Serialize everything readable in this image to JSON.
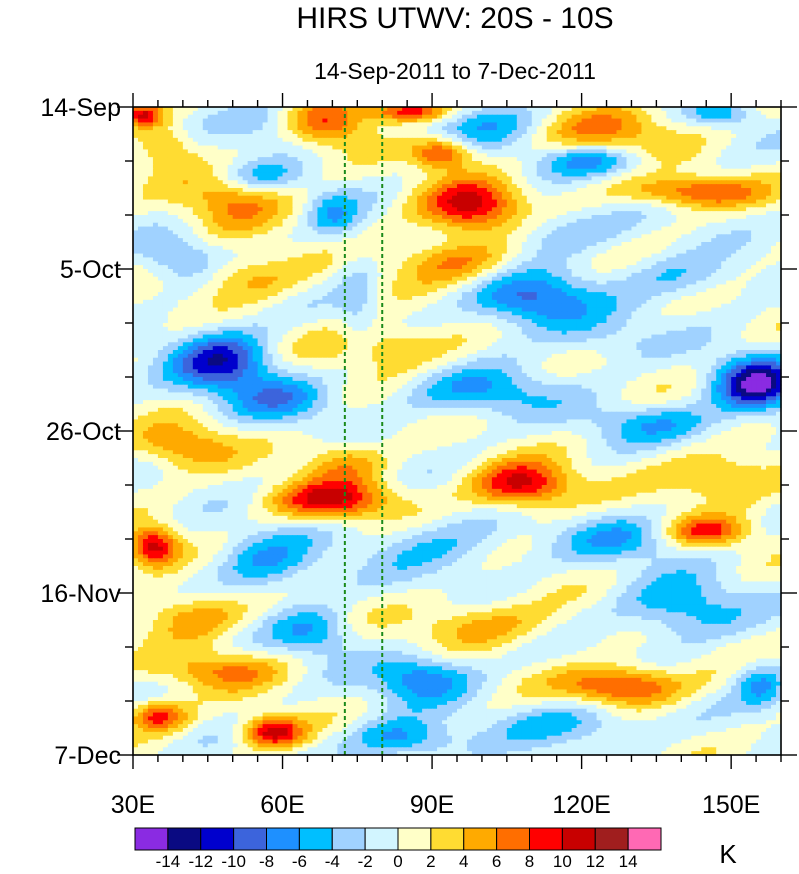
{
  "chart_data": {
    "type": "heatmap",
    "title": "HIRS UTWV: 20S - 10S",
    "subtitle": "14-Sep-2011 to 7-Dec-2011",
    "x_range": [
      30,
      160
    ],
    "x_ticks": [
      {
        "value": 30,
        "label": "30E"
      },
      {
        "value": 60,
        "label": "60E"
      },
      {
        "value": 90,
        "label": "90E"
      },
      {
        "value": 120,
        "label": "120E"
      },
      {
        "value": 150,
        "label": "150E"
      }
    ],
    "x_minor_step": 5,
    "y_range_days": [
      0,
      84
    ],
    "y_ticks": [
      {
        "value": 0,
        "label": "14-Sep"
      },
      {
        "value": 21,
        "label": "5-Oct"
      },
      {
        "value": 42,
        "label": "26-Oct"
      },
      {
        "value": 63,
        "label": "16-Nov"
      },
      {
        "value": 84,
        "label": "7-Dec"
      }
    ],
    "y_minor_step": 7,
    "reference_lines_lon": [
      72.5,
      80
    ],
    "units": "K",
    "levels": [
      -14,
      -12,
      -10,
      -8,
      -6,
      -4,
      -2,
      0,
      2,
      4,
      6,
      8,
      10,
      12,
      14
    ],
    "level_labels": [
      "-14",
      "-12",
      "-10",
      "-8",
      "-6",
      "-4",
      "-2",
      "0",
      "2",
      "4",
      "6",
      "8",
      "10",
      "12",
      "14"
    ],
    "colors": [
      "#8a2be2",
      "#0a0a82",
      "#0000cd",
      "#3c64dc",
      "#1e90ff",
      "#00bfff",
      "#a0d2ff",
      "#d2f5ff",
      "#ffffc8",
      "#ffdc32",
      "#ffaa00",
      "#ff6e00",
      "#ff0000",
      "#c80000",
      "#a01e1e",
      "#ff69b4"
    ],
    "anomaly_features": [
      {
        "lon": 60,
        "day": 2,
        "value": -8,
        "spread_lon": 10,
        "spread_day": 3
      },
      {
        "lon": 67,
        "day": 2,
        "value": 11,
        "spread_lon": 10,
        "spread_day": 3
      },
      {
        "lon": 86,
        "day": 0.5,
        "value": 12,
        "spread_lon": 8,
        "spread_day": 1.5
      },
      {
        "lon": 32,
        "day": 1,
        "value": 10,
        "spread_lon": 4,
        "spread_day": 1.5
      },
      {
        "lon": 37,
        "day": 5,
        "value": 5,
        "spread_lon": 6,
        "spread_day": 3
      },
      {
        "lon": 100,
        "day": 2,
        "value": -5,
        "spread_lon": 14,
        "spread_day": 3
      },
      {
        "lon": 125,
        "day": 3,
        "value": 6,
        "spread_lon": 14,
        "spread_day": 3
      },
      {
        "lon": 148,
        "day": 1,
        "value": -5,
        "spread_lon": 6,
        "spread_day": 1.5
      },
      {
        "lon": 92,
        "day": 6,
        "value": 9,
        "spread_lon": 6,
        "spread_day": 2
      },
      {
        "lon": 122,
        "day": 7,
        "value": -6,
        "spread_lon": 10,
        "spread_day": 2
      },
      {
        "lon": 55,
        "day": 9,
        "value": -5,
        "spread_lon": 8,
        "spread_day": 2
      },
      {
        "lon": 50,
        "day": 12,
        "value": 6,
        "spread_lon": 10,
        "spread_day": 4
      },
      {
        "lon": 98,
        "day": 13,
        "value": 11,
        "spread_lon": 10,
        "spread_day": 3.5
      },
      {
        "lon": 142,
        "day": 11,
        "value": 8,
        "spread_lon": 14,
        "spread_day": 2
      },
      {
        "lon": 70,
        "day": 14,
        "value": -5,
        "spread_lon": 5,
        "spread_day": 3
      },
      {
        "lon": 115,
        "day": 16,
        "value": -4,
        "spread_lon": 14,
        "spread_day": 3
      },
      {
        "lon": 40,
        "day": 20,
        "value": -5,
        "spread_lon": 8,
        "spread_day": 3
      },
      {
        "lon": 52,
        "day": 22,
        "value": 5,
        "spread_lon": 12,
        "spread_day": 3
      },
      {
        "lon": 95,
        "day": 20,
        "value": 6,
        "spread_lon": 12,
        "spread_day": 3
      },
      {
        "lon": 110,
        "day": 25,
        "value": -9,
        "spread_lon": 12,
        "spread_day": 3.5
      },
      {
        "lon": 140,
        "day": 22,
        "value": -4,
        "spread_lon": 12,
        "spread_day": 3
      },
      {
        "lon": 48,
        "day": 33,
        "value": -11,
        "spread_lon": 10,
        "spread_day": 4
      },
      {
        "lon": 80,
        "day": 31,
        "value": 5,
        "spread_lon": 14,
        "spread_day": 3
      },
      {
        "lon": 124,
        "day": 30,
        "value": -3,
        "spread_lon": 12,
        "spread_day": 3
      },
      {
        "lon": 155,
        "day": 36,
        "value": -14,
        "spread_lon": 8,
        "spread_day": 3.5
      },
      {
        "lon": 100,
        "day": 37,
        "value": -6,
        "spread_lon": 14,
        "spread_day": 3
      },
      {
        "lon": 60,
        "day": 38,
        "value": -6,
        "spread_lon": 10,
        "spread_day": 3
      },
      {
        "lon": 135,
        "day": 41,
        "value": -5,
        "spread_lon": 14,
        "spread_day": 2.5
      },
      {
        "lon": 40,
        "day": 44,
        "value": 6,
        "spread_lon": 10,
        "spread_day": 3
      },
      {
        "lon": 72,
        "day": 46,
        "value": 5,
        "spread_lon": 8,
        "spread_day": 3
      },
      {
        "lon": 108,
        "day": 49,
        "value": 11,
        "spread_lon": 10,
        "spread_day": 3
      },
      {
        "lon": 148,
        "day": 48,
        "value": 6,
        "spread_lon": 12,
        "spread_day": 3
      },
      {
        "lon": 70,
        "day": 51,
        "value": 10,
        "spread_lon": 12,
        "spread_day": 2.5
      },
      {
        "lon": 34,
        "day": 57,
        "value": 11,
        "spread_lon": 5,
        "spread_day": 2.5
      },
      {
        "lon": 57,
        "day": 59,
        "value": -6,
        "spread_lon": 10,
        "spread_day": 4
      },
      {
        "lon": 92,
        "day": 57,
        "value": -4,
        "spread_lon": 14,
        "spread_day": 4
      },
      {
        "lon": 128,
        "day": 56,
        "value": -5,
        "spread_lon": 12,
        "spread_day": 3
      },
      {
        "lon": 145,
        "day": 55,
        "value": 8,
        "spread_lon": 8,
        "spread_day": 2
      },
      {
        "lon": 42,
        "day": 66,
        "value": 6,
        "spread_lon": 10,
        "spread_day": 3
      },
      {
        "lon": 66,
        "day": 68,
        "value": -6,
        "spread_lon": 8,
        "spread_day": 3
      },
      {
        "lon": 100,
        "day": 67,
        "value": 5,
        "spread_lon": 14,
        "spread_day": 3
      },
      {
        "lon": 140,
        "day": 65,
        "value": -6,
        "spread_lon": 12,
        "spread_day": 4
      },
      {
        "lon": 88,
        "day": 74,
        "value": -8,
        "spread_lon": 10,
        "spread_day": 3
      },
      {
        "lon": 128,
        "day": 75,
        "value": 10,
        "spread_lon": 12,
        "spread_day": 2.5
      },
      {
        "lon": 48,
        "day": 73,
        "value": 6,
        "spread_lon": 12,
        "spread_day": 2.5
      },
      {
        "lon": 58,
        "day": 81,
        "value": 11,
        "spread_lon": 6,
        "spread_day": 2
      },
      {
        "lon": 35,
        "day": 79,
        "value": 9,
        "spread_lon": 6,
        "spread_day": 2
      },
      {
        "lon": 84,
        "day": 82,
        "value": -7,
        "spread_lon": 10,
        "spread_day": 2.5
      },
      {
        "lon": 118,
        "day": 80,
        "value": -5,
        "spread_lon": 14,
        "spread_day": 3
      },
      {
        "lon": 156,
        "day": 75,
        "value": -6,
        "spread_lon": 5,
        "spread_day": 3
      },
      {
        "lon": 75,
        "day": 26,
        "value": -3,
        "spread_lon": 4,
        "spread_day": 8
      }
    ]
  }
}
